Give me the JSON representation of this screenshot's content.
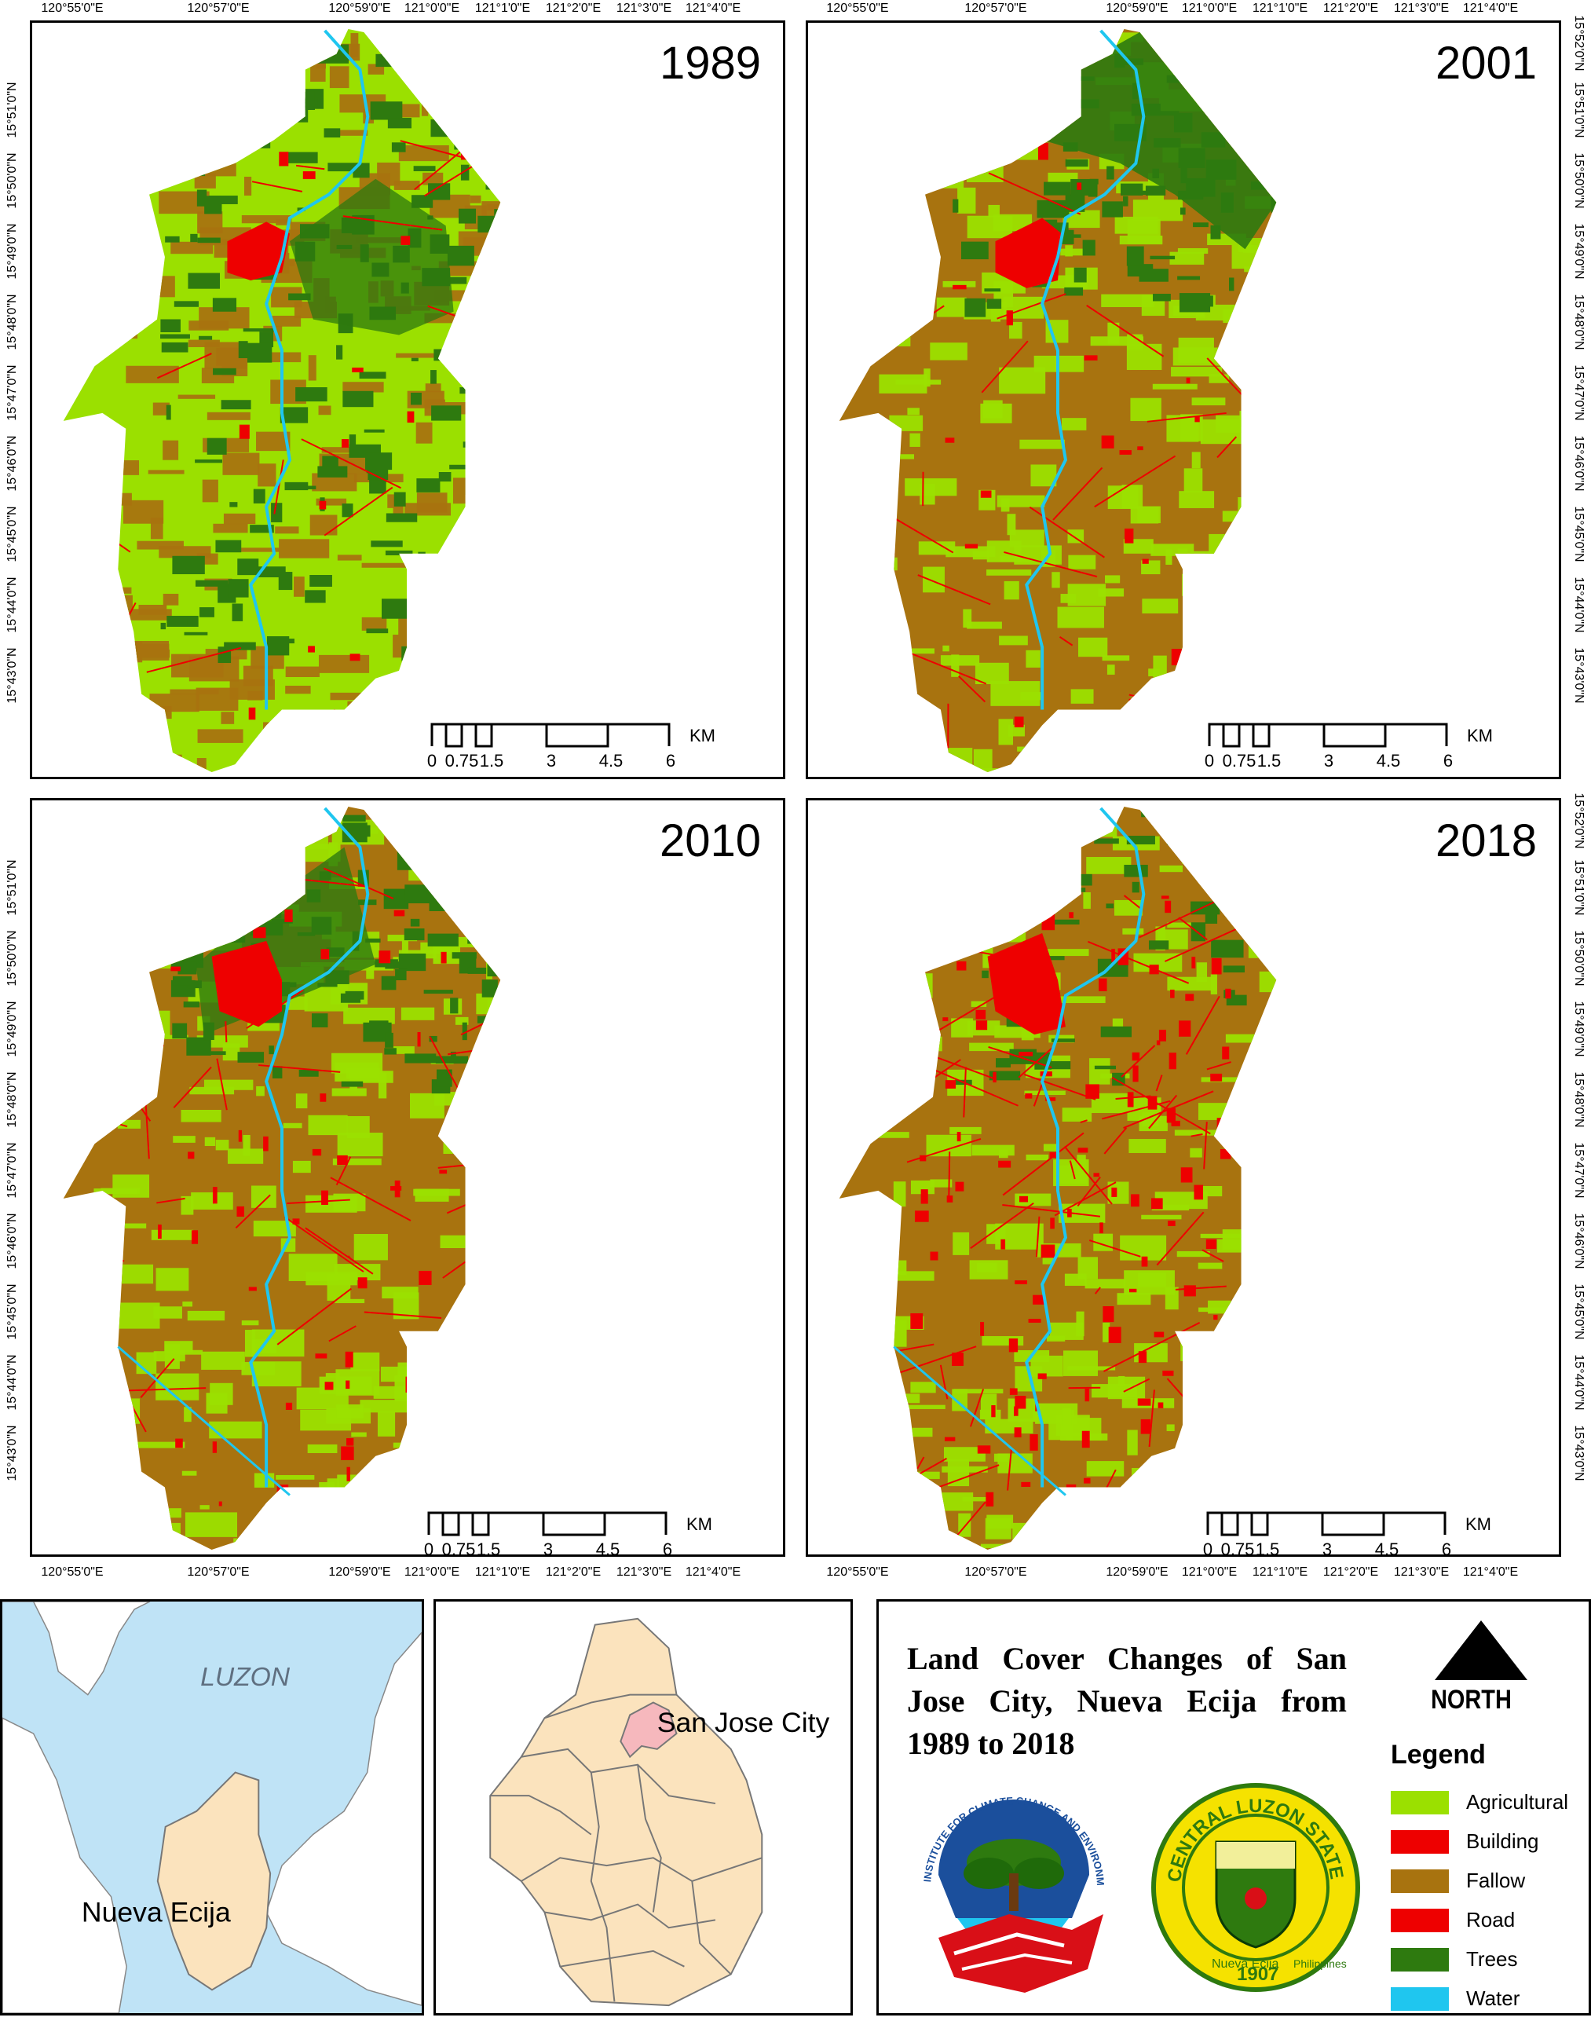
{
  "maps": [
    {
      "year": "1989",
      "base": "#9be000",
      "secondary": "#a8730f",
      "trees": "#2e7a0f"
    },
    {
      "year": "2001",
      "base": "#a8730f",
      "secondary": "#9be000",
      "trees": "#2e7a0f"
    },
    {
      "year": "2010",
      "base": "#a8730f",
      "secondary": "#9be000",
      "trees": "#2e7a0f"
    },
    {
      "year": "2018",
      "base": "#a8730f",
      "secondary": "#9be000",
      "trees": "#2e7a0f"
    }
  ],
  "axes": {
    "lon_top_left": [
      "120°55'0\"E",
      "120°57'0\"E",
      "120°59'0\"E",
      "121°0'0\"E",
      "121°1'0\"E",
      "121°2'0\"E",
      "121°3'0\"E",
      "121°4'0\"E"
    ],
    "lat_left": [
      "15°51'0\"N",
      "15°50'0\"N",
      "15°49'0\"N",
      "15°48'0\"N",
      "15°47'0\"N",
      "15°46'0\"N",
      "15°45'0\"N",
      "15°44'0\"N",
      "15°43'0\"N"
    ],
    "lat_right": [
      "15°52'0\"N",
      "15°51'0\"N",
      "15°50'0\"N",
      "15°49'0\"N",
      "15°48'0\"N",
      "15°47'0\"N",
      "15°46'0\"N",
      "15°45'0\"N",
      "15°44'0\"N",
      "15°43'0\"N"
    ],
    "lat_left_bottom": [
      "15°51'0\"N",
      "15°50'0\"N",
      "15°49'0\"N",
      "15°48'0\"N",
      "15°47'0\"N",
      "15°46'0\"N",
      "15°45'0\"N",
      "15°44'0\"N",
      "15°43'0\"N"
    ],
    "lat_right_bottom": [
      "15°52'0\"N",
      "15°51'0\"N",
      "15°50'0\"N",
      "15°49'0\"N",
      "15°48'0\"N",
      "15°47'0\"N",
      "15°46'0\"N",
      "15°45'0\"N",
      "15°44'0\"N",
      "15°43'0\"N"
    ]
  },
  "scalebar": {
    "labels": [
      "0",
      "0.75",
      "1.5",
      "3",
      "4.5",
      "6"
    ],
    "unit": "KM"
  },
  "insets": {
    "luzon_label": "LUZON",
    "province_label": "Nueva Ecija",
    "city_label": "San Jose City"
  },
  "title": "Land Cover Changes of San Jose City, Nueva Ecija from 1989 to 2018",
  "north": "NORTH",
  "legend": {
    "title": "Legend",
    "items": [
      {
        "label": "Agricultural",
        "color": "#9be000"
      },
      {
        "label": "Building",
        "color": "#ee0000"
      },
      {
        "label": "Fallow",
        "color": "#a8730f"
      },
      {
        "label": "Road",
        "color": "#ee0000"
      },
      {
        "label": "Trees",
        "color": "#2e7a0f"
      },
      {
        "label": "Water",
        "color": "#1fc6ef"
      }
    ]
  },
  "colors": {
    "water": "#1fc6ef",
    "building": "#ee0000",
    "luzon_sea": "#bfe3f6",
    "province": "#fbe3bd",
    "city": "#f6b8bd"
  },
  "logos": {
    "icceem_text": "INSTITUTE FOR CLIMATE CHANGE AND ENVIRONMENTAL MANAGEMENT",
    "clsu_text": "CENTRAL LUZON STATE UNIVERSITY",
    "clsu_sub": "Nueva Ecija",
    "clsu_year": "1907",
    "clsu_country": "Philippines"
  }
}
